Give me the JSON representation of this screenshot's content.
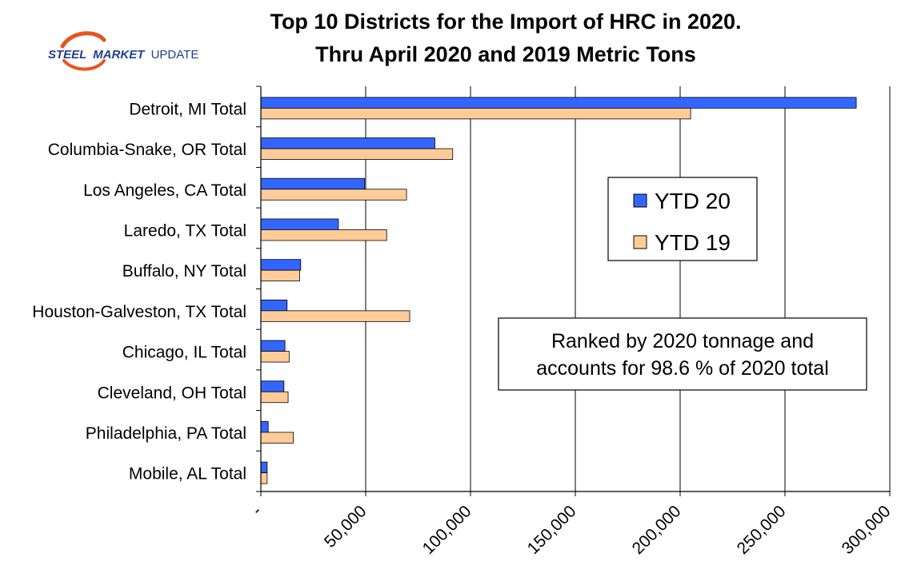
{
  "logo": {
    "word1": "STEEL",
    "word2": "MARKET",
    "word3": "UPDATE",
    "color_primary": "#1f3f8f",
    "color_accent": "#e8541e"
  },
  "chart_data": {
    "type": "bar",
    "orientation": "horizontal",
    "title": "Top 10 Districts for the Import of HRC in 2020.",
    "subtitle": "Thru April 2020 and 2019 Metric Tons",
    "categories": [
      "Detroit, MI Total",
      "Columbia-Snake, OR Total",
      "Los Angeles, CA Total",
      "Laredo, TX Total",
      "Buffalo, NY Total",
      "Houston-Galveston, TX Total",
      "Chicago, IL Total",
      "Cleveland, OH Total",
      "Philadelphia, PA Total",
      "Mobile, AL Total"
    ],
    "series": [
      {
        "name": "YTD 20",
        "color": "#3366ff",
        "values": [
          284000,
          83000,
          49500,
          37000,
          19000,
          12500,
          11500,
          11000,
          3500,
          3000
        ]
      },
      {
        "name": "YTD 19",
        "color": "#ffcc99",
        "values": [
          205000,
          91500,
          69500,
          60000,
          18500,
          71000,
          13500,
          13000,
          15500,
          3000
        ]
      }
    ],
    "xlim": [
      0,
      300000
    ],
    "xticks": [
      0,
      50000,
      100000,
      150000,
      200000,
      250000,
      300000
    ],
    "xtick_labels": [
      "-",
      "50,000",
      "100,000",
      "150,000",
      "200,000",
      "250,000",
      "300,000"
    ],
    "xlabel": "",
    "ylabel": "",
    "grid": "vertical",
    "legend_position": "right",
    "annotation_lines": [
      "Ranked by 2020 tonnage and",
      "accounts for 98.6 % of 2020 total"
    ]
  }
}
